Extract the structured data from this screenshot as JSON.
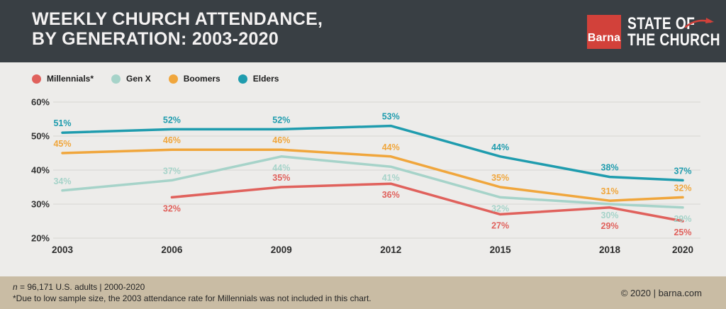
{
  "header": {
    "title_line1": "WEEKLY CHURCH ATTENDANCE,",
    "title_line2": "BY GENERATION: 2003-2020",
    "logo_text": "Barna",
    "brand_line1": "STATE OF",
    "brand_line2": "THE CHURCH",
    "brand_color": "#d2413a"
  },
  "legend": [
    {
      "label": "Millennials*",
      "color": "#e0615c"
    },
    {
      "label": "Gen X",
      "color": "#a6d3c9"
    },
    {
      "label": "Boomers",
      "color": "#f0a63c"
    },
    {
      "label": "Elders",
      "color": "#1f9cae"
    }
  ],
  "chart_data": {
    "type": "line",
    "title": "Weekly church attendance, by generation: 2003-2020",
    "x": [
      2003,
      2006,
      2009,
      2012,
      2015,
      2018,
      2020
    ],
    "x_tick_labels": [
      "2003",
      "2006",
      "2009",
      "2012",
      "2015",
      "2018",
      "2020"
    ],
    "y_ticks": [
      60,
      50,
      40,
      30,
      20
    ],
    "y_tick_labels": [
      "60%",
      "50%",
      "40%",
      "30%",
      "20%"
    ],
    "ylim": [
      20,
      60
    ],
    "grid": true,
    "unit": "%",
    "legend_position": "top-left",
    "series": [
      {
        "name": "Gen X",
        "color": "#a6d3c9",
        "values": [
          34,
          37,
          44,
          41,
          32,
          30,
          29
        ],
        "label_pos": [
          "above",
          "above",
          "below",
          "below",
          "below",
          "below",
          "below"
        ]
      },
      {
        "name": "Millennials*",
        "color": "#e0615c",
        "values": [
          null,
          32,
          35,
          36,
          27,
          29,
          25
        ],
        "label_pos": [
          null,
          "below",
          "above",
          "below",
          "below",
          "below",
          "below"
        ]
      },
      {
        "name": "Boomers",
        "color": "#f0a63c",
        "values": [
          45,
          46,
          46,
          44,
          35,
          31,
          32
        ],
        "label_pos": [
          "above",
          "above",
          "above",
          "above",
          "above",
          "above",
          "above"
        ]
      },
      {
        "name": "Elders",
        "color": "#1f9cae",
        "values": [
          51,
          52,
          52,
          53,
          44,
          38,
          37
        ],
        "label_pos": [
          "above",
          "above",
          "above",
          "above",
          "above",
          "above",
          "above"
        ]
      }
    ]
  },
  "footer": {
    "sample_italic": "n",
    "sample_rest": " = 96,171 U.S. adults | 2000-2020",
    "note": "*Due to low sample size, the 2003 attendance rate for Millennials was not included in this chart.",
    "copyright": "© 2020 | barna.com"
  }
}
